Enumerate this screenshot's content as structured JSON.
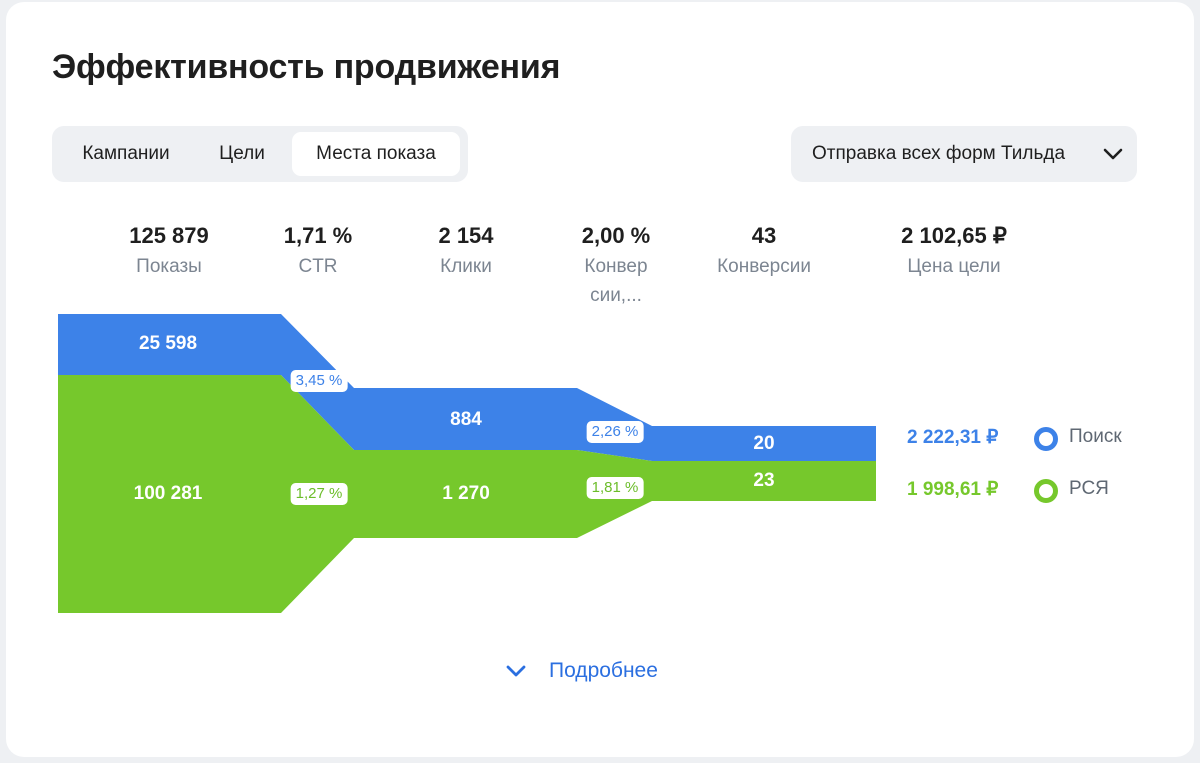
{
  "title": "Эффективность продвижения",
  "tabs": [
    {
      "label": "Кампании",
      "active": false
    },
    {
      "label": "Цели",
      "active": false
    },
    {
      "label": "Места показа",
      "active": true
    }
  ],
  "goal_select": {
    "value": "Отправка всех форм Тильда",
    "icon": "chevron-down-icon"
  },
  "metrics": [
    {
      "value": "125 879",
      "label": "Показы"
    },
    {
      "value": "1,71 %",
      "label": "CTR"
    },
    {
      "value": "2 154",
      "label": "Клики"
    },
    {
      "value": "2,00 %",
      "label": "Конвер сии,..."
    },
    {
      "value": "43",
      "label": "Конверсии"
    },
    {
      "value": "2 102,65 ₽",
      "label": "Цена цели"
    }
  ],
  "colors": {
    "search": "#3d82e8",
    "rsya": "#76c82c"
  },
  "chart_data": {
    "type": "funnel",
    "stages": [
      "Показы",
      "Клики",
      "Конверсии"
    ],
    "series": [
      {
        "name": "Поиск",
        "values": [
          25598,
          884,
          20
        ],
        "value_labels": [
          "25 598",
          "884",
          "20"
        ],
        "rates": [
          "3,45 %",
          "2,26 %"
        ],
        "goal_price": "2 222,31 ₽"
      },
      {
        "name": "РСЯ",
        "values": [
          100281,
          1270,
          23
        ],
        "value_labels": [
          "100 281",
          "1 270",
          "23"
        ],
        "rates": [
          "1,27 %",
          "1,81 %"
        ],
        "goal_price": "1 998,61 ₽"
      }
    ]
  },
  "more_link": {
    "label": "Подробнее",
    "icon": "chevron-down-icon"
  }
}
